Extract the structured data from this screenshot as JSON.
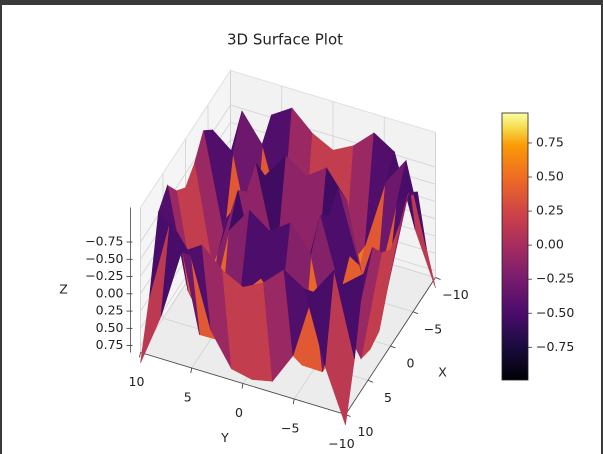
{
  "chart_data": {
    "type": "surface",
    "title": "3D Surface Plot",
    "xlabel": "X",
    "ylabel": "Y",
    "zlabel": "Z",
    "x": [
      -10,
      -8,
      -6,
      -4,
      -2,
      0,
      2,
      4,
      6,
      8,
      10
    ],
    "y": [
      -10,
      -8,
      -6,
      -4,
      -2,
      0,
      2,
      4,
      6,
      8,
      10
    ],
    "z": [
      [
        1.0,
        0.238,
        -0.786,
        -0.975,
        -0.698,
        -0.544,
        -0.698,
        -0.975,
        -0.786,
        0.238,
        1.0
      ],
      [
        0.238,
        -0.95,
        -0.544,
        0.462,
        0.924,
        0.989,
        0.924,
        0.462,
        -0.544,
        -0.95,
        0.238
      ],
      [
        -0.786,
        -0.544,
        0.807,
        0.8,
        0.042,
        -0.279,
        0.042,
        0.8,
        0.807,
        -0.544,
        -0.786
      ],
      [
        -0.975,
        0.462,
        0.8,
        -0.586,
        -0.971,
        -0.757,
        -0.971,
        -0.586,
        0.8,
        0.462,
        -0.975
      ],
      [
        -0.698,
        0.924,
        0.042,
        -0.971,
        0.308,
        0.909,
        0.308,
        -0.971,
        0.042,
        0.924,
        -0.698
      ],
      [
        -0.544,
        0.989,
        -0.279,
        -0.757,
        0.909,
        0,
        0.909,
        -0.757,
        -0.279,
        0.989,
        -0.544
      ],
      [
        -0.698,
        0.924,
        0.042,
        -0.971,
        0.308,
        0.909,
        0.308,
        -0.971,
        0.042,
        0.924,
        -0.698
      ],
      [
        -0.975,
        0.462,
        0.8,
        -0.586,
        -0.971,
        -0.757,
        -0.971,
        -0.586,
        0.8,
        0.462,
        -0.975
      ],
      [
        -0.786,
        -0.544,
        0.807,
        0.8,
        0.042,
        -0.279,
        0.042,
        0.8,
        0.807,
        -0.544,
        -0.786
      ],
      [
        0.238,
        -0.95,
        -0.544,
        0.462,
        0.924,
        0.989,
        0.924,
        0.462,
        -0.544,
        -0.95,
        0.238
      ],
      [
        1.0,
        0.238,
        -0.786,
        -0.975,
        -0.698,
        -0.544,
        -0.698,
        -0.975,
        -0.786,
        0.238,
        1.0
      ]
    ],
    "xlim": [
      -10,
      10
    ],
    "ylim": [
      -10,
      10
    ],
    "zlim": [
      -1.25,
      0.85
    ],
    "z_inverted": true,
    "xticks": [
      {
        "value": -10,
        "label": "−10"
      },
      {
        "value": -5,
        "label": "−5"
      },
      0,
      5,
      10
    ],
    "yticks": [
      {
        "value": -10,
        "label": "−10"
      },
      {
        "value": -5,
        "label": "−5"
      },
      0,
      5,
      10
    ],
    "zticks": [
      {
        "value": -0.75,
        "label": "−0.75"
      },
      {
        "value": -0.5,
        "label": "−0.50"
      },
      {
        "value": -0.25,
        "label": "−0.25"
      },
      {
        "value": 0,
        "label": "0.00"
      },
      0.25,
      {
        "value": 0.5,
        "label": "0.50"
      },
      0.75
    ],
    "colormap": "inferno",
    "grid": true,
    "colorbar": {
      "clim": [
        -0.99,
        0.97
      ],
      "ticks": [
        {
          "value": -0.75,
          "label": "−0.75"
        },
        {
          "value": -0.5,
          "label": "−0.50"
        },
        {
          "value": -0.25,
          "label": "−0.25"
        },
        {
          "value": 0,
          "label": "0.00"
        },
        0.25,
        {
          "value": 0.5,
          "label": "0.50"
        },
        0.75
      ]
    }
  }
}
